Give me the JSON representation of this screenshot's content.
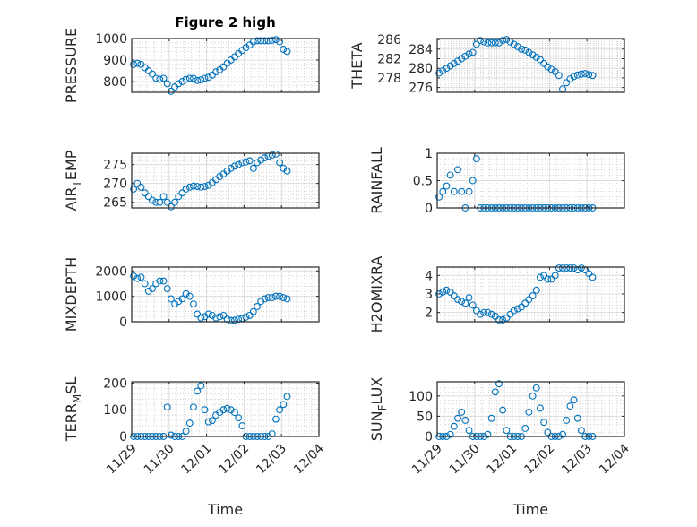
{
  "chart_data": [
    {
      "type": "scatter",
      "title": "Figure 2 high",
      "ylabel": "PRESSURE",
      "xlabel": "",
      "ylim": [
        750,
        1000
      ],
      "yticks": [
        800,
        900,
        1000
      ],
      "values": [
        880,
        885,
        880,
        865,
        850,
        835,
        815,
        810,
        815,
        790,
        755,
        775,
        790,
        800,
        810,
        815,
        815,
        805,
        808,
        815,
        820,
        830,
        845,
        855,
        868,
        885,
        900,
        915,
        930,
        945,
        958,
        970,
        985,
        990,
        990,
        990,
        990,
        992,
        995,
        985,
        950,
        940
      ]
    },
    {
      "type": "scatter",
      "title": "",
      "ylabel": "THETA",
      "xlabel": "",
      "ylim": [
        275,
        286.2
      ],
      "yticks": [
        276,
        278,
        280,
        282,
        284,
        286
      ],
      "values": [
        279,
        279.5,
        280,
        280.5,
        281,
        281.5,
        282,
        282.5,
        283,
        283.3,
        285,
        285.8,
        285.5,
        285.3,
        285.3,
        285.3,
        285.3,
        285.8,
        286,
        285.5,
        285,
        284.5,
        284,
        283.8,
        283.3,
        282.8,
        282.3,
        281.8,
        281,
        280.3,
        279.8,
        279.3,
        278.5,
        275.7,
        277,
        277.8,
        278.3,
        278.6,
        278.8,
        278.9,
        278.7,
        278.5
      ]
    },
    {
      "type": "scatter",
      "title": "",
      "ylabel": "AIR_TEMP",
      "xlabel": "",
      "ylim": [
        263.5,
        278
      ],
      "yticks": [
        265,
        270,
        275
      ],
      "values": [
        268.5,
        270,
        269,
        267.5,
        266.5,
        265.5,
        265,
        265,
        266.5,
        265,
        263.8,
        265,
        266.5,
        267.5,
        268.5,
        269,
        269.3,
        269.2,
        269,
        269.2,
        269.5,
        270.2,
        271,
        271.8,
        272.5,
        273.3,
        274,
        274.6,
        275,
        275.5,
        275.7,
        276,
        274,
        275.5,
        276.2,
        276.8,
        277.2,
        277.5,
        277.8,
        275.5,
        274,
        273.3
      ]
    },
    {
      "type": "scatter",
      "title": "",
      "ylabel": "RAINFALL",
      "xlabel": "",
      "ylim": [
        0,
        1
      ],
      "yticks": [
        0,
        0.5,
        1
      ],
      "values": [
        0.2,
        0.3,
        0.4,
        0.6,
        0.3,
        0.7,
        0.3,
        0,
        0.3,
        0.5,
        0.9,
        0,
        0,
        0,
        0,
        0,
        0,
        0,
        0,
        0,
        0,
        0,
        0,
        0,
        0,
        0,
        0,
        0,
        0,
        0,
        0,
        0,
        0,
        0,
        0,
        0,
        0,
        0,
        0,
        0,
        0,
        0
      ]
    },
    {
      "type": "scatter",
      "title": "",
      "ylabel": "MIXDEPTH",
      "xlabel": "",
      "ylim": [
        0,
        2150
      ],
      "yticks": [
        0,
        1000,
        2000
      ],
      "values": [
        1800,
        1700,
        1750,
        1500,
        1200,
        1300,
        1500,
        1600,
        1600,
        1300,
        900,
        700,
        800,
        900,
        1100,
        1000,
        700,
        300,
        150,
        200,
        300,
        250,
        150,
        200,
        250,
        100,
        50,
        60,
        100,
        130,
        180,
        250,
        400,
        600,
        800,
        900,
        950,
        950,
        1000,
        1000,
        950,
        900
      ]
    },
    {
      "type": "scatter",
      "title": "",
      "ylabel": "H2OMIXRA",
      "xlabel": "",
      "ylim": [
        1.5,
        4.45
      ],
      "yticks": [
        2,
        3,
        4
      ],
      "values": [
        3,
        3.1,
        3.2,
        3.1,
        2.9,
        2.7,
        2.6,
        2.5,
        2.8,
        2.4,
        2.1,
        1.9,
        2.0,
        2.0,
        1.9,
        1.8,
        1.6,
        1.6,
        1.7,
        1.9,
        2.1,
        2.2,
        2.3,
        2.5,
        2.7,
        2.9,
        3.2,
        3.9,
        4.0,
        3.8,
        3.8,
        4.0,
        4.4,
        4.4,
        4.4,
        4.4,
        4.4,
        4.3,
        4.4,
        4.3,
        4.1,
        3.9
      ]
    },
    {
      "type": "scatter",
      "title": "",
      "ylabel": "TERR_MSL",
      "xlabel": "Time",
      "ylim": [
        0,
        205
      ],
      "yticks": [
        0,
        100,
        200
      ],
      "values": [
        0,
        0,
        0,
        0,
        0,
        0,
        0,
        0,
        0,
        110,
        5,
        0,
        0,
        0,
        20,
        50,
        110,
        170,
        190,
        100,
        55,
        60,
        80,
        90,
        100,
        105,
        100,
        90,
        70,
        40,
        0,
        0,
        0,
        0,
        0,
        0,
        0,
        10,
        65,
        100,
        120,
        150
      ]
    },
    {
      "type": "scatter",
      "title": "",
      "ylabel": "SUN_FLUX",
      "xlabel": "Time",
      "ylim": [
        0,
        135
      ],
      "yticks": [
        0,
        50,
        100
      ],
      "values": [
        0,
        0,
        0,
        5,
        25,
        45,
        60,
        40,
        15,
        0,
        0,
        0,
        0,
        5,
        45,
        110,
        130,
        65,
        15,
        0,
        0,
        0,
        0,
        20,
        60,
        100,
        120,
        70,
        35,
        10,
        0,
        0,
        0,
        5,
        40,
        75,
        90,
        45,
        15,
        0,
        0,
        0
      ]
    }
  ],
  "shared_x": {
    "unit": "days since 11/29",
    "xlim": [
      0,
      5
    ],
    "xticks": [
      0,
      1,
      2,
      3,
      4,
      5
    ],
    "xticklabels": [
      "11/29",
      "11/30",
      "12/01",
      "12/02",
      "12/03",
      "12/04"
    ],
    "x": [
      0.05,
      0.15,
      0.25,
      0.35,
      0.45,
      0.55,
      0.65,
      0.75,
      0.85,
      0.95,
      1.05,
      1.15,
      1.25,
      1.35,
      1.45,
      1.55,
      1.65,
      1.75,
      1.85,
      1.95,
      2.05,
      2.15,
      2.25,
      2.35,
      2.45,
      2.55,
      2.65,
      2.75,
      2.85,
      2.95,
      3.05,
      3.15,
      3.25,
      3.35,
      3.45,
      3.55,
      3.65,
      3.75,
      3.85,
      3.95,
      4.05,
      4.15
    ]
  },
  "colors": {
    "marker": "#0072BD",
    "axis": "#262626",
    "grid": "#dcdcdc",
    "minor_grid": "#bdbdbd"
  }
}
